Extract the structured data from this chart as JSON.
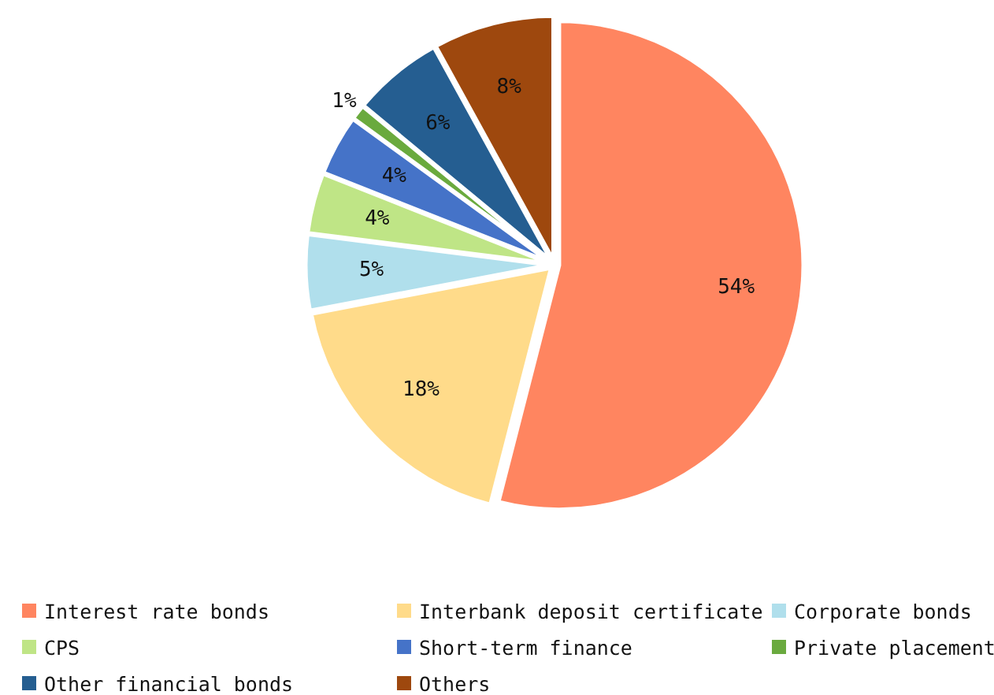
{
  "chart_data": {
    "type": "pie",
    "categories": [
      "Interest rate bonds",
      "Interbank deposit certificate",
      "Corporate bonds",
      "CPS",
      "Short-term finance",
      "Private placement",
      "Other financial bonds",
      "Others"
    ],
    "values": [
      54,
      18,
      5,
      4,
      4,
      1,
      6,
      8
    ],
    "colors": [
      "#ff8560",
      "#ffdb8a",
      "#b0dfec",
      "#bfe586",
      "#4573c8",
      "#6aaa3e",
      "#255e91",
      "#9e480e"
    ],
    "value_labels": [
      "54%",
      "18%",
      "5%",
      "4%",
      "4%",
      "1%",
      "6%",
      "8%"
    ],
    "legend": "bottom"
  }
}
